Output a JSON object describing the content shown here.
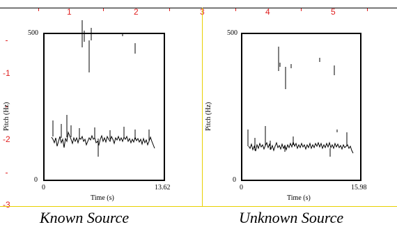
{
  "ruler": {
    "top_numbers": [
      "1",
      "2",
      "3",
      "4",
      "5"
    ],
    "left_numbers": [
      "-1",
      "-2",
      "-3"
    ]
  },
  "left_panel": {
    "ylabel": "Pitch (Hz)",
    "y_top": "500",
    "y_bottom": "0",
    "x_start": "0",
    "x_end": "13.62",
    "xlabel": "Time (s)",
    "caption": "Known Source"
  },
  "right_panel": {
    "ylabel": "Pitch (Hz)",
    "y_top": "500",
    "y_bottom": "0",
    "x_start": "0",
    "x_end": "15.98",
    "xlabel": "Time (s)",
    "caption": "Unknown Source"
  },
  "colors": {
    "ruler": "#e02020",
    "guide": "#e8d000",
    "trace": "#000000"
  }
}
